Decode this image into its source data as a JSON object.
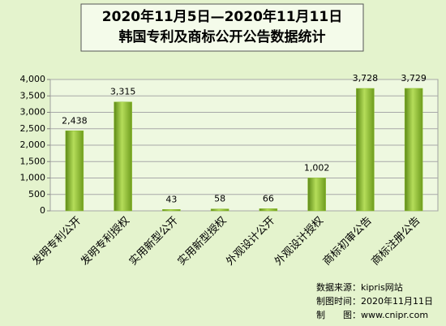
{
  "chart_data": {
    "type": "bar",
    "title": "2020年11月5日—2020年11月11日",
    "subtitle": "韩国专利及商标公开公告数据统计",
    "categories": [
      "发明专利公开",
      "发明专利授权",
      "实用新型公开",
      "实用新型授权",
      "外观设计公开",
      "外观设计授权",
      "商标初审公告",
      "商标注册公告"
    ],
    "values": [
      2438,
      3315,
      43,
      58,
      66,
      1002,
      3728,
      3729
    ],
    "value_labels": [
      "2,438",
      "3,315",
      "43",
      "58",
      "66",
      "1,002",
      "3,728",
      "3,729"
    ],
    "color": "#8cbf2e",
    "ylim": [
      0,
      4000
    ],
    "yticks": [
      0,
      500,
      {
        "value": 1000,
        "label": "1,000"
      },
      {
        "value": 1500,
        "label": "1,500"
      },
      {
        "value": 2000,
        "label": "2,000"
      },
      {
        "value": 2500,
        "label": "2,500"
      },
      {
        "value": 3000,
        "label": "3,000"
      },
      {
        "value": 3500,
        "label": "3,500"
      },
      {
        "value": 4000,
        "label": "4,000"
      }
    ],
    "grid": true,
    "notes": [
      "数据来源：kipris网站",
      "制图时间：2020年11月11日",
      "制　　图：www.cnipr.com"
    ]
  }
}
